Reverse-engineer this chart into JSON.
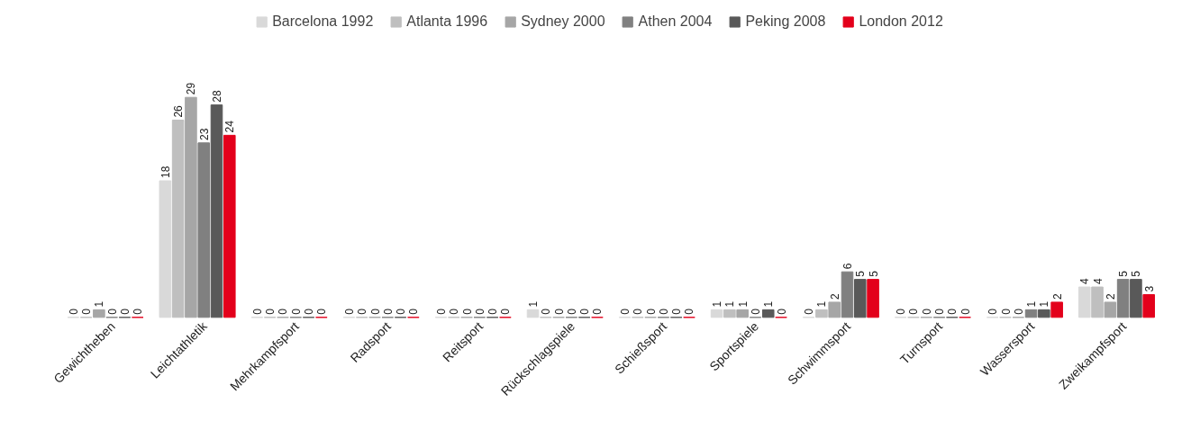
{
  "chart_data": {
    "type": "bar",
    "categories": [
      "Gewichtheben",
      "Leichtathletik",
      "Mehrkampfsport",
      "Radsport",
      "Reitsport",
      "Rückschlagspiele",
      "Schießsport",
      "Sportspiele",
      "Schwimmsport",
      "Turnsport",
      "Wassersport",
      "Zweikampfsport"
    ],
    "series": [
      {
        "name": "Barcelona 1992",
        "color": "#d9d9d9",
        "values": [
          0,
          18,
          0,
          0,
          0,
          1,
          0,
          1,
          0,
          0,
          0,
          4
        ]
      },
      {
        "name": "Atlanta 1996",
        "color": "#bfbfbf",
        "values": [
          0,
          26,
          0,
          0,
          0,
          0,
          0,
          1,
          1,
          0,
          0,
          4
        ]
      },
      {
        "name": "Sydney 2000",
        "color": "#a6a6a6",
        "values": [
          1,
          29,
          0,
          0,
          0,
          0,
          0,
          1,
          2,
          0,
          0,
          2
        ]
      },
      {
        "name": "Athen 2004",
        "color": "#808080",
        "values": [
          0,
          23,
          0,
          0,
          0,
          0,
          0,
          0,
          6,
          0,
          1,
          5
        ]
      },
      {
        "name": "Peking 2008",
        "color": "#595959",
        "values": [
          0,
          28,
          0,
          0,
          0,
          0,
          0,
          1,
          5,
          0,
          1,
          5
        ]
      },
      {
        "name": "London 2012",
        "color": "#e3001b",
        "values": [
          0,
          24,
          0,
          0,
          0,
          0,
          0,
          0,
          5,
          0,
          2,
          3
        ]
      }
    ],
    "data_labels": true,
    "legend": "top",
    "grid": false,
    "tick_labels": "x"
  }
}
